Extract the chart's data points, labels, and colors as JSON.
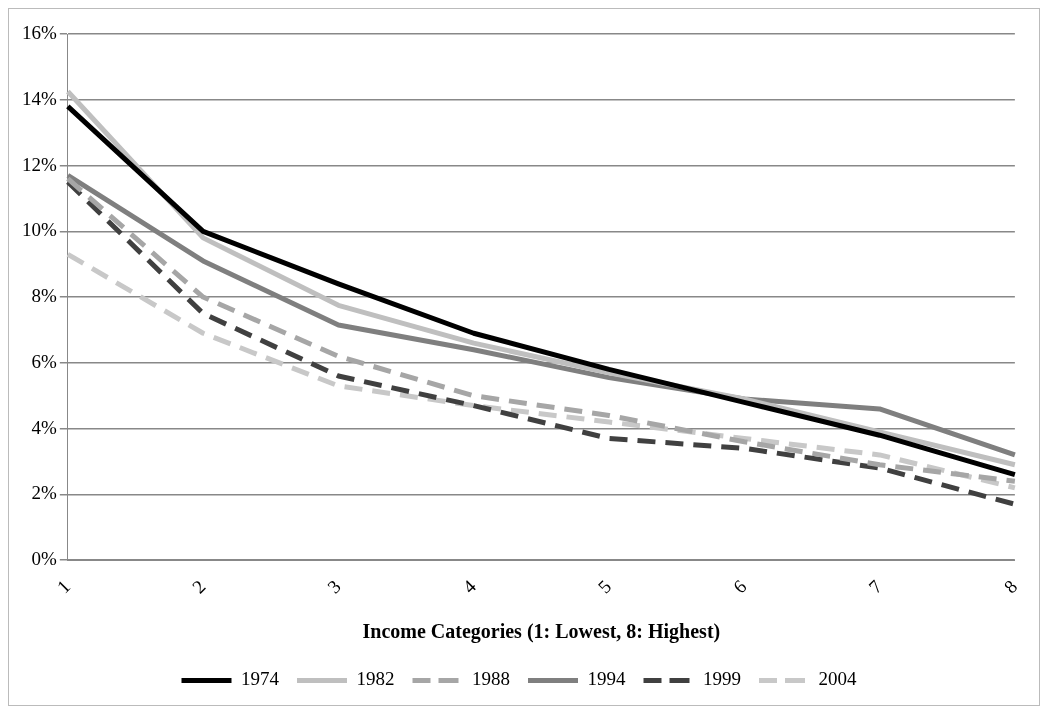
{
  "chart_data": {
    "type": "line",
    "xlabel": "Income Categories (1: Lowest, 8: Highest)",
    "categories": [
      "1",
      "2",
      "3",
      "4",
      "5",
      "6",
      "7",
      "8"
    ],
    "ylim": [
      0,
      16
    ],
    "yticks": [
      {
        "value": 0,
        "label": "0%"
      },
      {
        "value": 2,
        "label": "2%"
      },
      {
        "value": 4,
        "label": "4%"
      },
      {
        "value": 6,
        "label": "6%"
      },
      {
        "value": 8,
        "label": "8%"
      },
      {
        "value": 10,
        "label": "10%"
      },
      {
        "value": 12,
        "label": "12%"
      },
      {
        "value": 14,
        "label": "14%"
      },
      {
        "value": 16,
        "label": "16%"
      }
    ],
    "grid": "y",
    "legend": "bottom",
    "marker": "none",
    "series": [
      {
        "name": "1974",
        "color": "#000000",
        "line_style": "solid",
        "values": [
          13.8,
          10.0,
          8.4,
          6.9,
          5.8,
          4.8,
          3.8,
          2.6
        ]
      },
      {
        "name": "1982",
        "color": "#bfbfbf",
        "line_style": "solid",
        "values": [
          14.25,
          9.8,
          7.75,
          6.6,
          5.7,
          4.9,
          3.9,
          2.9
        ]
      },
      {
        "name": "1988",
        "color": "#a6a6a6",
        "line_style": "dashed",
        "values": [
          11.6,
          8.0,
          6.2,
          5.0,
          4.4,
          3.6,
          2.9,
          2.4
        ]
      },
      {
        "name": "1994",
        "color": "#7f7f7f",
        "line_style": "solid",
        "values": [
          11.7,
          9.1,
          7.15,
          6.4,
          5.55,
          4.9,
          4.6,
          3.2
        ]
      },
      {
        "name": "1999",
        "color": "#404040",
        "line_style": "dashed",
        "values": [
          11.5,
          7.5,
          5.6,
          4.7,
          3.7,
          3.4,
          2.8,
          1.7
        ]
      },
      {
        "name": "2004",
        "color": "#c8c8c8",
        "line_style": "dashed",
        "values": [
          9.3,
          6.9,
          5.3,
          4.7,
          4.2,
          3.7,
          3.2,
          2.2
        ]
      }
    ]
  }
}
